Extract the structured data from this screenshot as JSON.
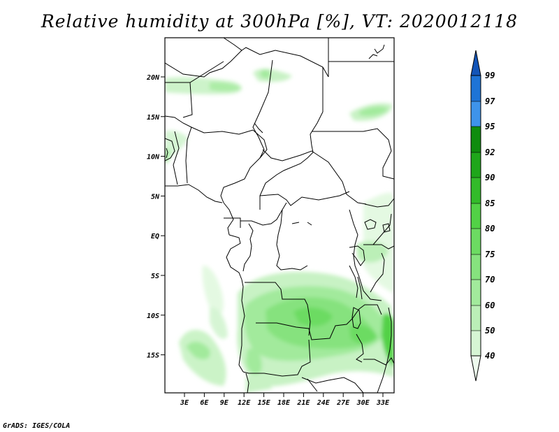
{
  "title": "Relative humidity at 300hPa [%], VT: 2020012118",
  "credit": "GrADS: IGES/COLA",
  "map": {
    "lat_labels": [
      "20N",
      "15N",
      "10N",
      "5N",
      "EQ",
      "5S",
      "10S",
      "15S"
    ],
    "lon_labels": [
      "3E",
      "6E",
      "9E",
      "12E",
      "15E",
      "18E",
      "21E",
      "24E",
      "27E",
      "30E",
      "33E"
    ]
  },
  "colorbar": {
    "levels": [
      "40",
      "50",
      "60",
      "70",
      "75",
      "80",
      "85",
      "90",
      "92",
      "95",
      "97",
      "99"
    ],
    "colors": [
      "#eefbee",
      "#d6f5d4",
      "#bbefb7",
      "#a2ea9c",
      "#86e27e",
      "#6cdb62",
      "#52d146",
      "#33bb2a",
      "#1fa61a",
      "#0f8c0e",
      "#3e93ea",
      "#1e74d6",
      "#1355b8"
    ]
  }
}
